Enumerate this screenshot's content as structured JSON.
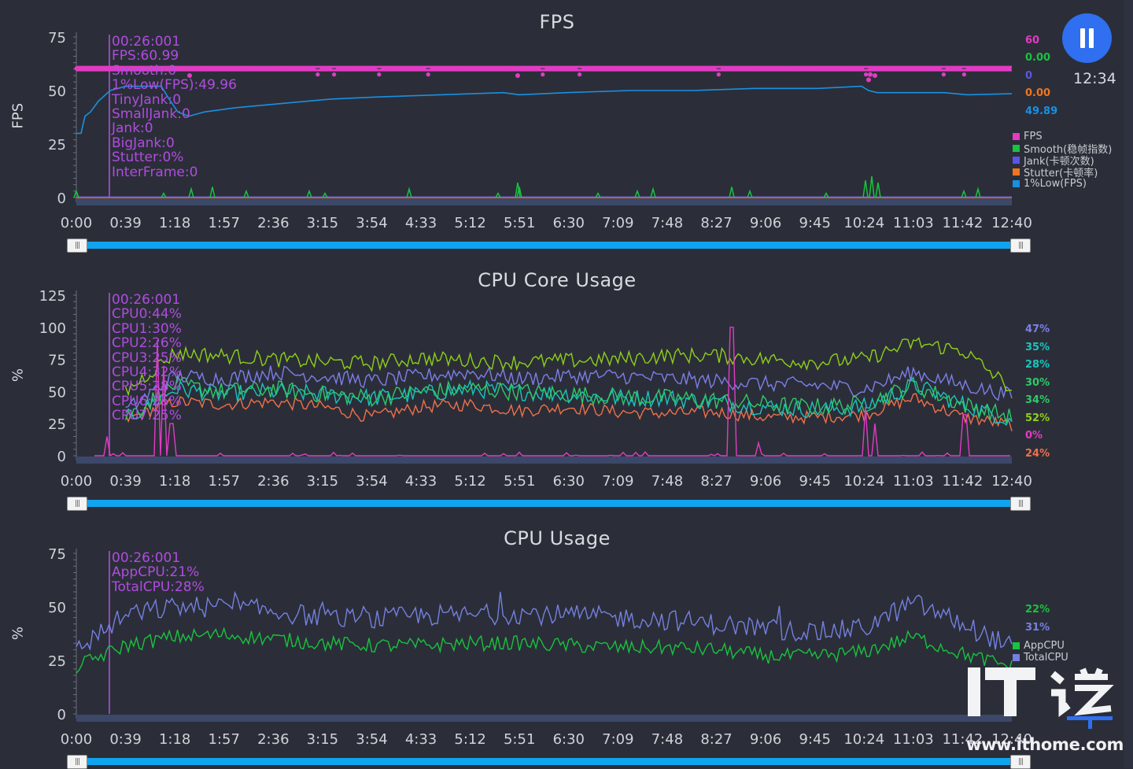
{
  "colors": {
    "background": "#2b2e38",
    "fps": "#e33bc4",
    "smooth": "#19c23f",
    "jank": "#5a55e8",
    "stutter": "#f07520",
    "low1": "#1a8fe3",
    "cursor": "#b04ce0",
    "cpu0": "#8ecf1a",
    "cpu1": "#7d7fe8",
    "cpu2": "#19c4c0",
    "cpu3": "#2fc96a",
    "cpu4": "#f0704a",
    "cpu5": "#e33bc4",
    "app_cpu": "#19c23f",
    "total_cpu": "#7580e0",
    "slider": "#10a4f0"
  },
  "header": {
    "clock": "12:34",
    "pause_icon": "pause-icon"
  },
  "x_ticks": [
    "0:00",
    "0:39",
    "1:18",
    "1:57",
    "2:36",
    "3:15",
    "3:54",
    "4:33",
    "5:12",
    "5:51",
    "6:30",
    "7:09",
    "7:48",
    "8:27",
    "9:06",
    "9:45",
    "10:24",
    "11:03",
    "11:42",
    "12:40"
  ],
  "fps_panel": {
    "title": "FPS",
    "ylabel": "FPS",
    "y_ticks": [
      "75",
      "50",
      "25",
      "0"
    ],
    "tooltip": [
      "00:26:001",
      "FPS:60.99",
      "Smooth:0",
      "1%Low(FPS):49.96",
      "TinyJank:0",
      "SmallJank:0",
      "Jank:0",
      "BigJank:0",
      "Stutter:0%",
      "InterFrame:0"
    ],
    "right_values": [
      "60",
      "0.00",
      "0",
      "0.00",
      "49.89"
    ],
    "legend": [
      "FPS",
      "Smooth(稳帧指数)",
      "Jank(卡顿次数)",
      "Stutter(卡顿率)",
      "1%Low(FPS)"
    ]
  },
  "cpu_core_panel": {
    "title": "CPU Core Usage",
    "ylabel": "%",
    "y_ticks": [
      "125",
      "100",
      "75",
      "50",
      "25",
      "0"
    ],
    "tooltip": [
      "00:26:001",
      "CPU0:44%",
      "CPU1:30%",
      "CPU2:26%",
      "CPU3:25%",
      "CPU4:32%",
      "CPU5:28%",
      "CPU6:25%",
      "CPU7:25%"
    ],
    "right_values": [
      "47%",
      "35%",
      "28%",
      "30%",
      "34%",
      "52%",
      "0%",
      "24%"
    ]
  },
  "cpu_usage_panel": {
    "title": "CPU Usage",
    "ylabel": "%",
    "y_ticks": [
      "75",
      "50",
      "25",
      "0"
    ],
    "tooltip": [
      "00:26:001",
      "AppCPU:21%",
      "TotalCPU:28%"
    ],
    "right_values": [
      "22%",
      "31%"
    ],
    "legend": [
      "AppCPU",
      "TotalCPU"
    ]
  },
  "watermark": {
    "logo_text": "IT之家",
    "url": "www.ithome.com"
  },
  "chart_data": [
    {
      "type": "line",
      "title": "FPS",
      "ylabel": "FPS",
      "ylim": [
        0,
        75
      ],
      "x": [
        "0:00",
        "0:39",
        "1:18",
        "1:57",
        "2:36",
        "3:15",
        "3:54",
        "4:33",
        "5:12",
        "5:51",
        "6:30",
        "7:09",
        "7:48",
        "8:27",
        "9:06",
        "9:45",
        "10:24",
        "11:03",
        "11:42",
        "12:40"
      ],
      "series": [
        {
          "name": "FPS",
          "values": [
            60,
            60,
            60,
            60,
            60,
            60,
            60,
            60,
            60,
            60,
            60,
            60,
            60,
            60,
            60,
            60,
            60,
            59,
            60,
            60
          ]
        },
        {
          "name": "Smooth(稳帧指数)",
          "values": [
            0,
            3,
            2,
            0,
            1,
            1,
            0,
            0,
            1,
            0,
            0,
            1,
            0,
            0,
            0,
            0,
            0,
            6,
            0,
            0
          ]
        },
        {
          "name": "Jank(卡顿次数)",
          "values": [
            0,
            0,
            0,
            0,
            0,
            0,
            0,
            0,
            0,
            0,
            0,
            0,
            0,
            0,
            0,
            0,
            0,
            0,
            0,
            0
          ]
        },
        {
          "name": "Stutter(卡顿率)",
          "values": [
            0,
            0,
            0,
            0,
            0,
            0,
            0,
            0,
            0,
            0,
            0,
            0,
            0,
            0,
            0,
            0,
            0,
            0,
            0,
            0
          ]
        },
        {
          "name": "1%Low(FPS)",
          "values": [
            30,
            51,
            38,
            42,
            45,
            47,
            48,
            49,
            50,
            50,
            51,
            51,
            52,
            52,
            52,
            52,
            53,
            49,
            49,
            49
          ]
        }
      ]
    },
    {
      "type": "line",
      "title": "CPU Core Usage",
      "ylabel": "%",
      "ylim": [
        0,
        125
      ],
      "x": [
        "0:00",
        "0:39",
        "1:18",
        "1:57",
        "2:36",
        "3:15",
        "3:54",
        "4:33",
        "5:12",
        "5:51",
        "6:30",
        "7:09",
        "7:48",
        "8:27",
        "9:06",
        "9:45",
        "10:24",
        "11:03",
        "11:42",
        "12:40"
      ],
      "series": [
        {
          "values": [
            null,
            50,
            80,
            78,
            75,
            73,
            72,
            76,
            74,
            73,
            74,
            75,
            78,
            78,
            75,
            73,
            75,
            88,
            82,
            52
          ]
        },
        {
          "values": [
            null,
            35,
            62,
            60,
            65,
            62,
            58,
            62,
            65,
            60,
            62,
            62,
            60,
            58,
            56,
            55,
            52,
            65,
            55,
            47
          ]
        },
        {
          "values": [
            null,
            28,
            52,
            48,
            50,
            48,
            45,
            48,
            52,
            50,
            48,
            45,
            45,
            42,
            38,
            36,
            38,
            55,
            40,
            28
          ]
        },
        {
          "values": [
            null,
            30,
            55,
            50,
            52,
            48,
            45,
            50,
            52,
            50,
            48,
            46,
            45,
            43,
            40,
            38,
            40,
            55,
            40,
            30
          ]
        },
        {
          "values": [
            null,
            28,
            42,
            40,
            42,
            38,
            30,
            38,
            40,
            35,
            38,
            34,
            33,
            34,
            30,
            30,
            32,
            45,
            30,
            24
          ]
        },
        {
          "values": [
            null,
            0,
            2,
            0,
            1,
            0,
            0,
            0,
            0,
            0,
            0,
            1,
            0,
            0,
            1,
            0,
            0,
            2,
            1,
            0
          ]
        }
      ]
    },
    {
      "type": "line",
      "title": "CPU Usage",
      "ylabel": "%",
      "ylim": [
        0,
        75
      ],
      "x": [
        "0:00",
        "0:39",
        "1:18",
        "1:57",
        "2:36",
        "3:15",
        "3:54",
        "4:33",
        "5:12",
        "5:51",
        "6:30",
        "7:09",
        "7:48",
        "8:27",
        "9:06",
        "9:45",
        "10:24",
        "11:03",
        "11:42",
        "12:40"
      ],
      "series": [
        {
          "name": "AppCPU",
          "values": [
            22,
            32,
            36,
            37,
            35,
            33,
            32,
            32,
            33,
            33,
            32,
            31,
            31,
            30,
            27,
            27,
            29,
            36,
            28,
            22
          ]
        },
        {
          "name": "TotalCPU",
          "values": [
            30,
            46,
            50,
            50,
            48,
            45,
            44,
            46,
            46,
            47,
            46,
            45,
            44,
            42,
            40,
            38,
            40,
            52,
            42,
            31
          ]
        }
      ]
    }
  ]
}
